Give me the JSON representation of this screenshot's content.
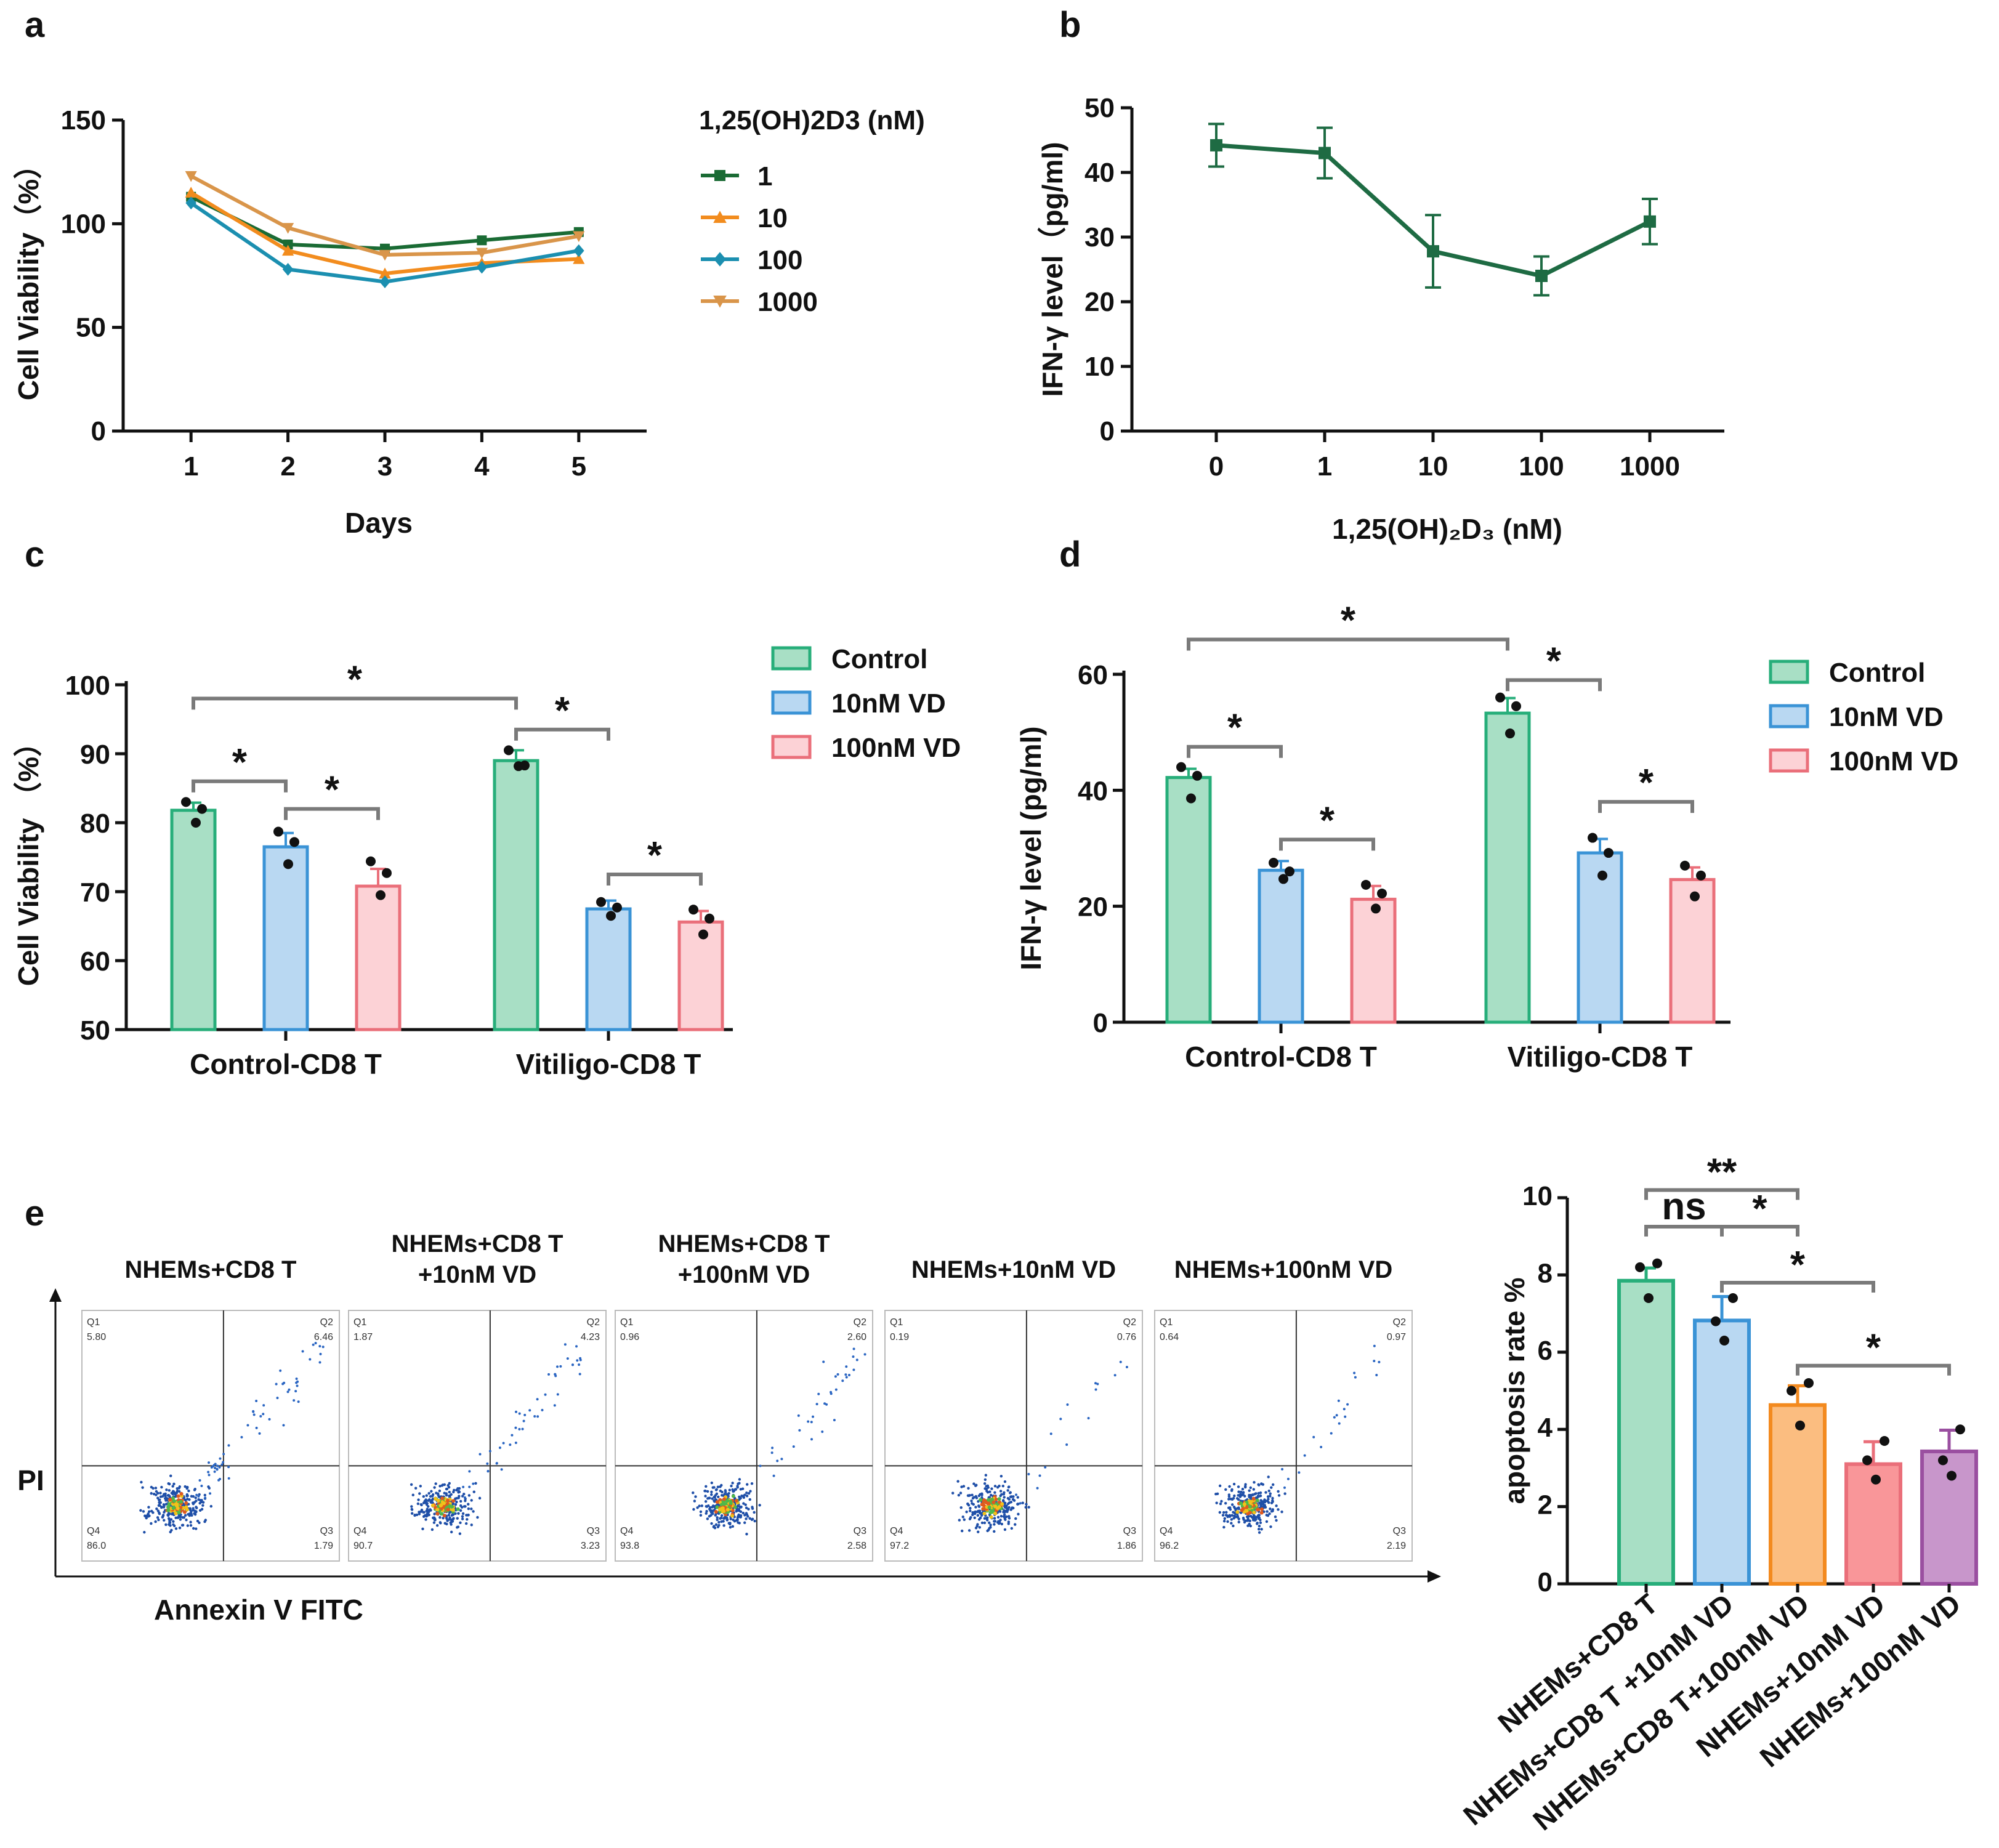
{
  "panels": {
    "a": "a",
    "b": "b",
    "c": "c",
    "d": "d",
    "e": "e"
  },
  "chart_data": [
    {
      "id": "a",
      "type": "line",
      "ylabel": "Cell Viability（%）",
      "xlabel": "Days",
      "legend_title": "1,25(OH)2D3 (nM)",
      "x": [
        1,
        2,
        3,
        4,
        5
      ],
      "xticks": [
        "1",
        "2",
        "3",
        "4",
        "5"
      ],
      "ylim": [
        0,
        150
      ],
      "yticks": [
        0,
        50,
        100,
        150
      ],
      "series": [
        {
          "name": "1",
          "color": "#1a6b34",
          "marker": "square",
          "values": [
            113,
            90,
            88,
            92,
            96
          ]
        },
        {
          "name": "10",
          "color": "#f28c1e",
          "marker": "triangle",
          "values": [
            115,
            87,
            76,
            81,
            83
          ]
        },
        {
          "name": "100",
          "color": "#1b8fb0",
          "marker": "diamond",
          "values": [
            110,
            78,
            72,
            79,
            87
          ]
        },
        {
          "name": "1000",
          "color": "#d9954a",
          "marker": "tri-down",
          "values": [
            123,
            98,
            85,
            86,
            94
          ]
        }
      ]
    },
    {
      "id": "b",
      "type": "line",
      "ylabel": "IFN-γ level（pg/ml)",
      "xlabel": "1,25(OH)₂D₃ (nM)",
      "categories": [
        "0",
        "1",
        "10",
        "100",
        "1000"
      ],
      "ylim": [
        0,
        50
      ],
      "yticks": [
        0,
        10,
        20,
        30,
        40,
        50
      ],
      "series": [
        {
          "name": "IFN-γ",
          "color": "#1e6b43",
          "values": [
            44.2,
            43,
            27.8,
            24,
            32.4
          ],
          "errors": [
            3.3,
            3.9,
            5.6,
            3,
            3.5
          ]
        }
      ]
    },
    {
      "id": "c",
      "type": "bar",
      "ylabel": "Cell Viability （%）",
      "categories": [
        "Control-CD8 T",
        "Vitiligo-CD8 T"
      ],
      "ylim": [
        50,
        100
      ],
      "yticks": [
        50,
        60,
        70,
        80,
        90,
        100
      ],
      "series": [
        {
          "name": "Control",
          "fill": "#a8dfc5",
          "stroke": "#27ae7a",
          "values": [
            81.8,
            89
          ],
          "errors": [
            1.1,
            1.5
          ],
          "points": [
            [
              83,
              82,
              80
            ],
            [
              90.5,
              88.3,
              88.2
            ]
          ]
        },
        {
          "name": "10nM VD",
          "fill": "#b9d8f2",
          "stroke": "#3a93d6",
          "values": [
            76.5,
            67.5
          ],
          "errors": [
            2,
            1.2
          ],
          "points": [
            [
              78.7,
              77.2,
              74
            ],
            [
              68.5,
              67.7,
              66.5
            ]
          ]
        },
        {
          "name": "100nM VD",
          "fill": "#fcd2d6",
          "stroke": "#ea6f7a",
          "values": [
            70.8,
            65.6
          ],
          "errors": [
            2.5,
            1.6
          ],
          "points": [
            [
              74.4,
              72.7,
              69.5
            ],
            [
              67.4,
              66.1,
              63.8
            ]
          ]
        }
      ],
      "significance": [
        {
          "label": "*",
          "group": 0,
          "from": 0,
          "to": 1,
          "y": 86
        },
        {
          "label": "*",
          "group": 0,
          "from": 1,
          "to": 2,
          "y": 82
        },
        {
          "label": "*",
          "group": 1,
          "from": 0,
          "to": 1,
          "y": 93.5
        },
        {
          "label": "*",
          "group": 1,
          "from": 1,
          "to": 2,
          "y": 72.5
        },
        {
          "label": "*",
          "between_groups": true,
          "from": [
            0,
            0
          ],
          "to": [
            1,
            0
          ],
          "y": 98
        }
      ]
    },
    {
      "id": "d",
      "type": "bar",
      "ylabel": "IFN-γ  level (pg/ml)",
      "categories": [
        "Control-CD8 T",
        "Vitiligo-CD8 T"
      ],
      "ylim": [
        0,
        60
      ],
      "yticks": [
        0,
        20,
        40,
        60
      ],
      "series": [
        {
          "name": "Control",
          "fill": "#a8dfc5",
          "stroke": "#27ae7a",
          "values": [
            42.2,
            53.3
          ],
          "errors": [
            1.5,
            2.6
          ],
          "points": [
            [
              44,
              42.5,
              38.6
            ],
            [
              56,
              54.5,
              49.8
            ]
          ]
        },
        {
          "name": "10nM VD",
          "fill": "#b9d8f2",
          "stroke": "#3a93d6",
          "values": [
            26.2,
            29.2
          ],
          "errors": [
            1.6,
            2.4
          ],
          "points": [
            [
              27.5,
              26,
              24.7
            ],
            [
              31.8,
              29.2,
              25.3
            ]
          ]
        },
        {
          "name": "100nM VD",
          "fill": "#fcd2d6",
          "stroke": "#ea6f7a",
          "values": [
            21.2,
            24.6
          ],
          "errors": [
            2.3,
            2.1
          ],
          "points": [
            [
              23.7,
              22.2,
              19.6
            ],
            [
              27,
              25.3,
              21.7
            ]
          ]
        }
      ],
      "significance": [
        {
          "label": "*",
          "group": 0,
          "from": 0,
          "to": 1,
          "y": 47.5
        },
        {
          "label": "*",
          "group": 0,
          "from": 1,
          "to": 2,
          "y": 31.5
        },
        {
          "label": "*",
          "group": 1,
          "from": 0,
          "to": 1,
          "y": 59
        },
        {
          "label": "*",
          "group": 1,
          "from": 1,
          "to": 2,
          "y": 38
        },
        {
          "label": "*",
          "between_groups": true,
          "from": [
            0,
            0
          ],
          "to": [
            1,
            0
          ],
          "y": 66
        }
      ]
    },
    {
      "id": "e-bar",
      "type": "bar",
      "ylabel": "apoptosis rate %",
      "ylim": [
        0,
        10
      ],
      "yticks": [
        0,
        2,
        4,
        6,
        8,
        10
      ],
      "categories": [
        "NHEMs+CD8 T",
        "NHEMs+CD8 T +10nM VD",
        "NHEMs+CD8 T+100nM VD",
        "NHEMs+10nM VD",
        "NHEMs+100nM VD"
      ],
      "values": [
        7.85,
        6.82,
        4.63,
        3.1,
        3.43
      ],
      "errors": [
        0.33,
        0.62,
        0.5,
        0.58,
        0.55
      ],
      "colors": [
        {
          "fill": "#a8dfc5",
          "stroke": "#27ae7a"
        },
        {
          "fill": "#b9d8f2",
          "stroke": "#3a93d6"
        },
        {
          "fill": "#fbbd80",
          "stroke": "#f38a1f"
        },
        {
          "fill": "#f99699",
          "stroke": "#ea6f7a"
        },
        {
          "fill": "#c896cb",
          "stroke": "#9a4fa0"
        }
      ],
      "points": [
        [
          8.3,
          8.2,
          7.4
        ],
        [
          7.4,
          6.8,
          6.3
        ],
        [
          5.2,
          5,
          4.1
        ],
        [
          3.7,
          3.2,
          2.7
        ],
        [
          4,
          3.2,
          2.8
        ]
      ],
      "significance": [
        {
          "label": "**",
          "from": 0,
          "to": 2,
          "y": 10.2
        },
        {
          "label": "ns",
          "from": 0,
          "to": 1,
          "y": 9.25
        },
        {
          "label": "*",
          "from": 1,
          "to": 2,
          "y": 9.25
        },
        {
          "label": "*",
          "from": 1,
          "to": 3,
          "y": 7.8
        },
        {
          "label": "*",
          "from": 2,
          "to": 4,
          "y": 5.65
        }
      ]
    }
  ],
  "flow": {
    "ylabel": "PI",
    "xlabel": "Annexin V FITC",
    "plots": [
      {
        "title": [
          "NHEMs+CD8 T"
        ],
        "q1_name": "Q1",
        "q1": "5.80",
        "q2_name": "Q2",
        "q2": "6.46",
        "q3_name": "Q3",
        "q3": "1.79",
        "q4_name": "Q4",
        "q4": "86.0"
      },
      {
        "title": [
          "NHEMs+CD8 T",
          "+10nM VD"
        ],
        "q1_name": "Q1",
        "q1": "1.87",
        "q2_name": "Q2",
        "q2": "4.23",
        "q3_name": "Q3",
        "q3": "3.23",
        "q4_name": "Q4",
        "q4": "90.7"
      },
      {
        "title": [
          "NHEMs+CD8 T",
          "+100nM VD"
        ],
        "q1_name": "Q1",
        "q1": "0.96",
        "q2_name": "Q2",
        "q2": "2.60",
        "q3_name": "Q3",
        "q3": "2.58",
        "q4_name": "Q4",
        "q4": "93.8"
      },
      {
        "title": [
          "NHEMs+10nM VD"
        ],
        "q1_name": "Q1",
        "q1": "0.19",
        "q2_name": "Q2",
        "q2": "0.76",
        "q3_name": "Q3",
        "q3": "1.86",
        "q4_name": "Q4",
        "q4": "97.2"
      },
      {
        "title": [
          "NHEMs+100nM VD"
        ],
        "q1_name": "Q1",
        "q1": "0.64",
        "q2_name": "Q2",
        "q2": "0.97",
        "q3_name": "Q3",
        "q3": "2.19",
        "q4_name": "Q4",
        "q4": "96.2"
      }
    ]
  }
}
